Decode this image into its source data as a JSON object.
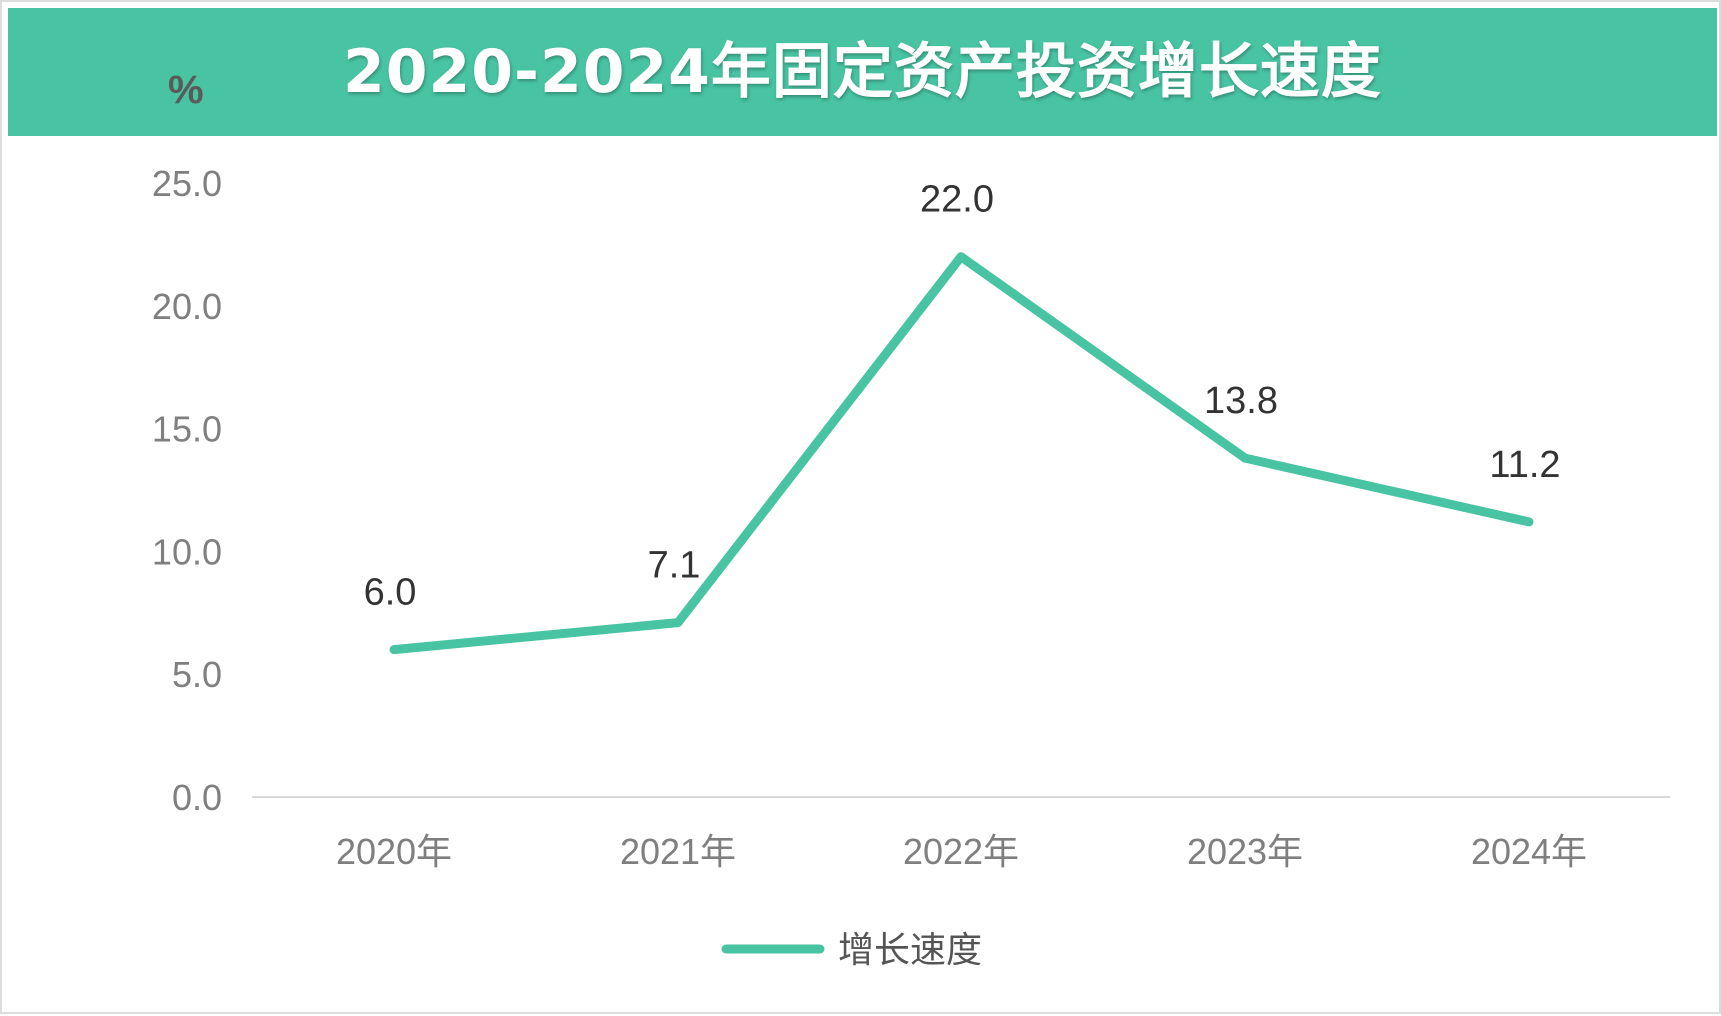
{
  "title": "2020-2024年固定资产投资增长速度",
  "unit_label": "%",
  "colors": {
    "title_bar": "#48c4a2",
    "series_line": "#48c4a2",
    "axis_line": "#d9d9d9",
    "tick_text": "#7f7f7f",
    "data_label_text": "#333333"
  },
  "chart_data": {
    "type": "line",
    "title": "2020-2024年固定资产投资增长速度",
    "ylabel": "%",
    "xlabel": "",
    "categories": [
      "2020年",
      "2021年",
      "2022年",
      "2023年",
      "2024年"
    ],
    "series": [
      {
        "name": "增长速度",
        "values": [
          6.0,
          7.1,
          22.0,
          13.8,
          11.2
        ],
        "data_labels": [
          "6.0",
          "7.1",
          "22.0",
          "13.8",
          "11.2"
        ]
      }
    ],
    "ylim": [
      0,
      25
    ],
    "yticks": [
      "0.0",
      "5.0",
      "10.0",
      "15.0",
      "20.0",
      "25.0"
    ],
    "grid": false,
    "legend_position": "bottom-center"
  }
}
